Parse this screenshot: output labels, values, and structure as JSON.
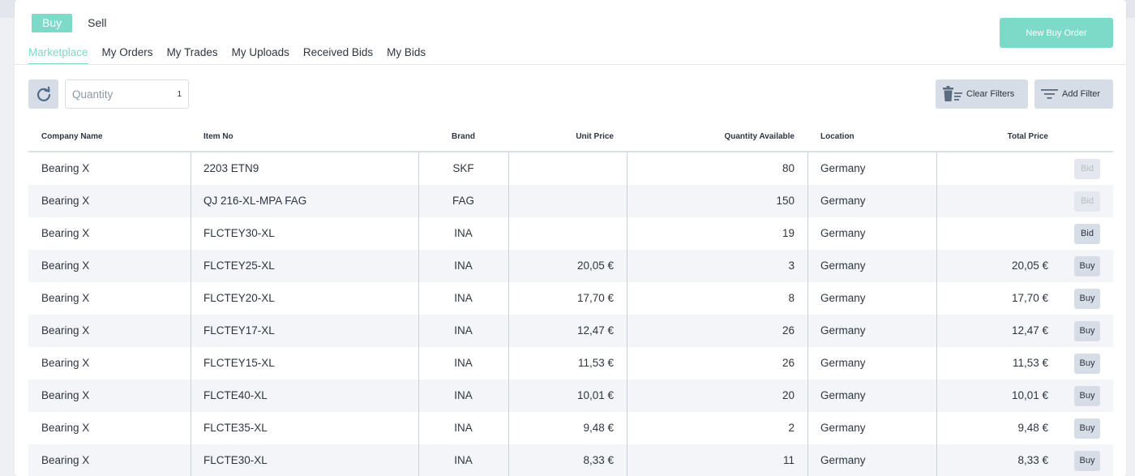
{
  "mode": {
    "buy_label": "Buy",
    "sell_label": "Sell"
  },
  "tabs": [
    {
      "label": "Marketplace"
    },
    {
      "label": "My Orders"
    },
    {
      "label": "My Trades"
    },
    {
      "label": "My Uploads"
    },
    {
      "label": "Received Bids"
    },
    {
      "label": "My Bids"
    }
  ],
  "new_order_label": "New Buy Order",
  "toolbar": {
    "quantity_placeholder": "Quantity",
    "quantity_value": "1",
    "clear_filters_label": "Clear Filters",
    "add_filter_label": "Add Filter"
  },
  "table": {
    "columns": [
      "Company Name",
      "Item No",
      "Brand",
      "Unit Price",
      "Quantity Available",
      "Location",
      "Total Price"
    ],
    "rows": [
      {
        "company": "Bearing X",
        "item": "2203 ETN9",
        "brand": "SKF",
        "unit_price": "",
        "qty": "80",
        "location": "Germany",
        "total": "",
        "action": "Bid",
        "action_state": "disabled"
      },
      {
        "company": "Bearing X",
        "item": "QJ 216-XL-MPA FAG",
        "brand": "FAG",
        "unit_price": "",
        "qty": "150",
        "location": "Germany",
        "total": "",
        "action": "Bid",
        "action_state": "disabled"
      },
      {
        "company": "Bearing X",
        "item": "FLCTEY30-XL",
        "brand": "INA",
        "unit_price": "",
        "qty": "19",
        "location": "Germany",
        "total": "",
        "action": "Bid",
        "action_state": "enabled"
      },
      {
        "company": "Bearing X",
        "item": "FLCTEY25-XL",
        "brand": "INA",
        "unit_price": "20,05 €",
        "qty": "3",
        "location": "Germany",
        "total": "20,05 €",
        "action": "Buy",
        "action_state": "enabled"
      },
      {
        "company": "Bearing X",
        "item": "FLCTEY20-XL",
        "brand": "INA",
        "unit_price": "17,70 €",
        "qty": "8",
        "location": "Germany",
        "total": "17,70 €",
        "action": "Buy",
        "action_state": "enabled"
      },
      {
        "company": "Bearing X",
        "item": "FLCTEY17-XL",
        "brand": "INA",
        "unit_price": "12,47 €",
        "qty": "26",
        "location": "Germany",
        "total": "12,47 €",
        "action": "Buy",
        "action_state": "enabled"
      },
      {
        "company": "Bearing X",
        "item": "FLCTEY15-XL",
        "brand": "INA",
        "unit_price": "11,53 €",
        "qty": "26",
        "location": "Germany",
        "total": "11,53 €",
        "action": "Buy",
        "action_state": "enabled"
      },
      {
        "company": "Bearing X",
        "item": "FLCTE40-XL",
        "brand": "INA",
        "unit_price": "10,01 €",
        "qty": "20",
        "location": "Germany",
        "total": "10,01 €",
        "action": "Buy",
        "action_state": "enabled"
      },
      {
        "company": "Bearing X",
        "item": "FLCTE35-XL",
        "brand": "INA",
        "unit_price": "9,48 €",
        "qty": "2",
        "location": "Germany",
        "total": "9,48 €",
        "action": "Buy",
        "action_state": "enabled"
      },
      {
        "company": "Bearing X",
        "item": "FLCTE30-XL",
        "brand": "INA",
        "unit_price": "8,33 €",
        "qty": "11",
        "location": "Germany",
        "total": "8,33 €",
        "action": "Buy",
        "action_state": "enabled"
      }
    ]
  },
  "colors": {
    "accent": "#7dd9c8",
    "button_bg": "#d6dde6",
    "row_alt": "#f3f5f8"
  },
  "icons": {
    "refresh": "refresh-icon",
    "clear_filters": "trash-filter-icon",
    "add_filter": "filter-lines-icon"
  }
}
